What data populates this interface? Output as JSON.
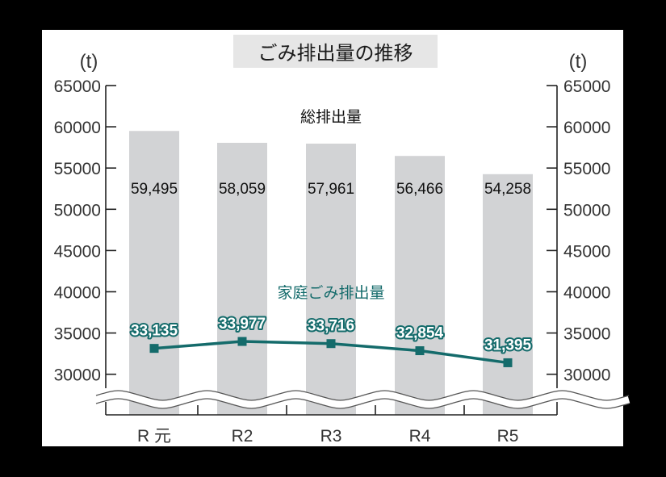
{
  "title": "ごみ排出量の推移",
  "unit_left": "(t)",
  "unit_right": "(t)",
  "bar_series_label": "総排出量",
  "line_series_label": "家庭ごみ排出量",
  "colors": {
    "bar": "#d2d3d5",
    "line": "#146b6b",
    "title_bg": "#e6e6e6",
    "panel": "#ffffff",
    "background": "#000000"
  },
  "chart_data": {
    "type": "bar",
    "title": "ごみ排出量の推移",
    "xlabel": "",
    "ylabel": "(t)",
    "ylim": [
      30000,
      65000
    ],
    "y_ticks": [
      65000,
      60000,
      55000,
      50000,
      45000,
      40000,
      35000,
      30000
    ],
    "axis_break": true,
    "dual_axis": true,
    "grid": false,
    "categories": [
      "R 元",
      "R2",
      "R3",
      "R4",
      "R5"
    ],
    "series": [
      {
        "name": "総排出量",
        "type": "bar",
        "values": [
          59495,
          58059,
          57961,
          56466,
          54258
        ],
        "labels": [
          "59,495",
          "58,059",
          "57,961",
          "56,466",
          "54,258"
        ]
      },
      {
        "name": "家庭ごみ排出量",
        "type": "line",
        "values": [
          33135,
          33977,
          33716,
          32854,
          31395
        ],
        "labels": [
          "33,135",
          "33,977",
          "33,716",
          "32,854",
          "31,395"
        ]
      }
    ]
  }
}
